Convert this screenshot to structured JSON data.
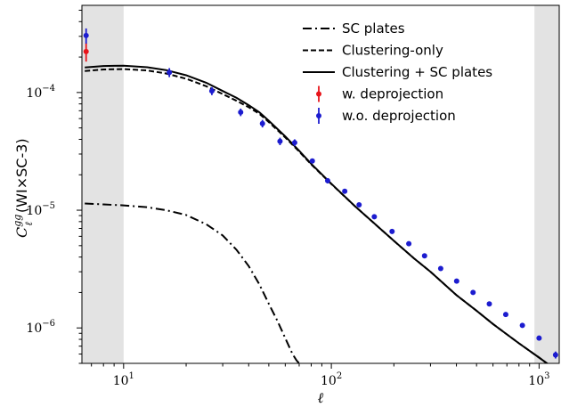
{
  "chart_data": {
    "type": "line",
    "xscale": "log",
    "yscale": "log",
    "xlim": [
      6.3,
      1250
    ],
    "ylim": [
      5e-07,
      0.00055
    ],
    "xlabel": "ℓ",
    "ylabel": {
      "math_main": "C",
      "math_sup": "gg",
      "math_sub": "ℓ",
      "suffix": "(WI×SC-3)"
    },
    "x_tick_labels": [
      {
        "value": 10,
        "base": "10",
        "exp": "1"
      },
      {
        "value": 100,
        "base": "10",
        "exp": "2"
      },
      {
        "value": 1000,
        "base": "10",
        "exp": "3"
      }
    ],
    "y_tick_labels": [
      {
        "value": 1e-06,
        "base": "10",
        "exp": "−6"
      },
      {
        "value": 1e-05,
        "base": "10",
        "exp": "−5"
      },
      {
        "value": 0.0001,
        "base": "10",
        "exp": "−4"
      }
    ],
    "masked_ranges": [
      [
        6.3,
        10
      ],
      [
        950,
        1250
      ]
    ],
    "series": [
      {
        "name": "SC plates",
        "style": "dashdot",
        "color": "#000000",
        "x": [
          6.5,
          8,
          10,
          13,
          16,
          20,
          25,
          30,
          35,
          40,
          45,
          50,
          55,
          60,
          65,
          68,
          70
        ],
        "y": [
          1.14e-05,
          1.12e-05,
          1.1e-05,
          1.06e-05,
          1e-05,
          9.1e-06,
          7.6e-06,
          6.1e-06,
          4.6e-06,
          3.35e-06,
          2.35e-06,
          1.6e-06,
          1.15e-06,
          8.2e-07,
          6e-07,
          5.3e-07,
          5e-07
        ]
      },
      {
        "name": "Clustering-only",
        "style": "dashed",
        "color": "#000000",
        "x": [
          6.5,
          8,
          10,
          13,
          16,
          20,
          25,
          30,
          35,
          40,
          45,
          50,
          60,
          70,
          80,
          100,
          130,
          160,
          200,
          250,
          300,
          400,
          500,
          600,
          700,
          800,
          1000,
          1250
        ],
        "y": [
          0.000152,
          0.000157,
          0.000158,
          0.000154,
          0.000145,
          0.000131,
          0.000113,
          9.7e-05,
          8.5e-05,
          7.5e-05,
          6.6e-05,
          5.6e-05,
          4.15e-05,
          3.15e-05,
          2.45e-05,
          1.67e-05,
          1.08e-05,
          7.8e-06,
          5.5e-06,
          3.9e-06,
          3e-06,
          1.9e-06,
          1.4e-06,
          1.08e-06,
          8.8e-07,
          7.4e-07,
          5.6e-07,
          4.2e-07
        ]
      },
      {
        "name": "Clustering + SC plates",
        "style": "solid",
        "color": "#000000",
        "x": [
          6.5,
          8,
          10,
          13,
          16,
          20,
          25,
          30,
          35,
          40,
          45,
          50,
          60,
          70,
          80,
          100,
          130,
          160,
          200,
          250,
          300,
          400,
          500,
          600,
          700,
          800,
          1000,
          1250
        ],
        "y": [
          0.000163,
          0.000168,
          0.000169,
          0.000164,
          0.000155,
          0.00014,
          0.000121,
          0.000103,
          9e-05,
          7.8e-05,
          6.8e-05,
          5.75e-05,
          4.24e-05,
          3.2e-05,
          2.48e-05,
          1.68e-05,
          1.08e-05,
          7.8e-06,
          5.5e-06,
          3.9e-06,
          3e-06,
          1.9e-06,
          1.4e-06,
          1.08e-06,
          8.8e-07,
          7.4e-07,
          5.6e-07,
          4.2e-07
        ]
      },
      {
        "name": "w. deprojection",
        "style": "errorbar",
        "color": "#e8141a",
        "x": [
          6.6
        ],
        "y": [
          0.000223
        ],
        "yerr": [
          4e-05
        ]
      },
      {
        "name": "w.o. deprojection",
        "style": "errorbar",
        "color": "#1c1ccf",
        "x": [
          6.6,
          16.6,
          26.6,
          36.6,
          46.6,
          56.6,
          66.6,
          81,
          96,
          116,
          136,
          161,
          196,
          236,
          281,
          336,
          401,
          481,
          576,
          691,
          831,
          1000,
          1200
        ],
        "y": [
          0.000305,
          0.000148,
          0.000103,
          6.8e-05,
          5.45e-05,
          3.85e-05,
          3.75e-05,
          2.62e-05,
          1.78e-05,
          1.45e-05,
          1.11e-05,
          8.8e-06,
          6.6e-06,
          5.2e-06,
          4.1e-06,
          3.2e-06,
          2.5e-06,
          2e-06,
          1.6e-06,
          1.3e-06,
          1.05e-06,
          8.2e-07,
          5.9e-07
        ],
        "yerr": [
          4.5e-05,
          1.3e-05,
          8e-06,
          5e-06,
          4e-06,
          2.8e-06,
          2.5e-06,
          1.2e-06,
          9e-07,
          7e-07,
          5e-07,
          4e-07,
          3e-07,
          2e-07,
          1.7e-07,
          1.3e-07,
          1e-07,
          8e-08,
          6e-08,
          5e-08,
          4e-08,
          4e-08,
          4e-08
        ]
      }
    ],
    "legend": {
      "placement": "top-right",
      "entries": [
        "SC plates",
        "Clustering-only",
        "Clustering + SC plates",
        "w. deprojection",
        "w.o. deprojection"
      ]
    },
    "grid": false
  }
}
